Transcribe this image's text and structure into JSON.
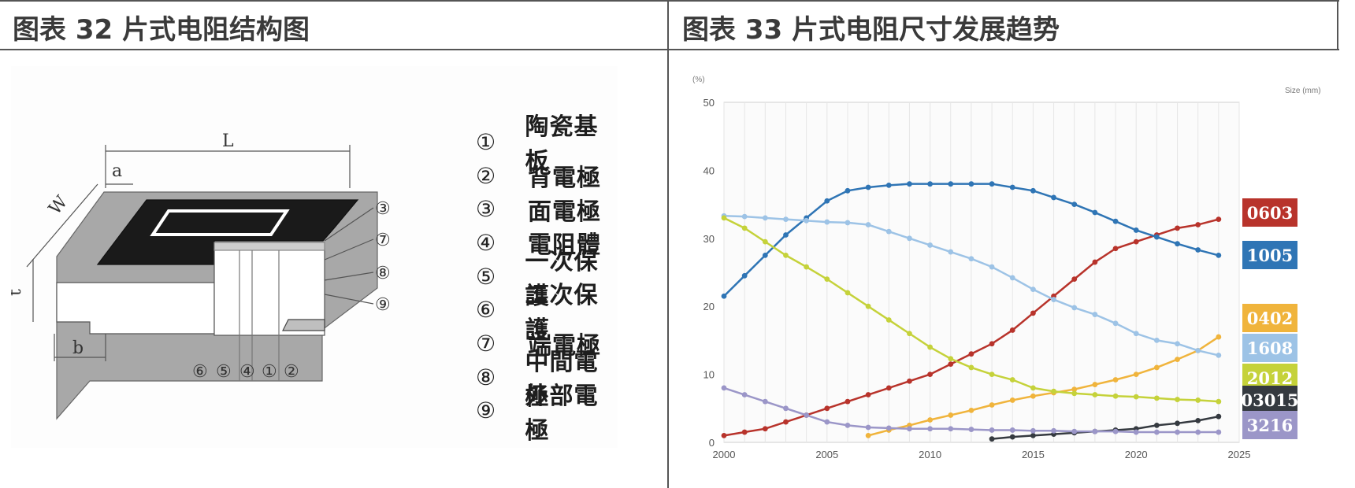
{
  "panels": {
    "left_title": "图表 32 片式电阻结构图",
    "right_title": "图表 33 片式电阻尺寸发展趋势"
  },
  "diagram": {
    "dims": [
      "L",
      "a",
      "W",
      "t",
      "b"
    ],
    "callouts": [
      "③",
      "⑦",
      "⑧",
      "⑨"
    ],
    "bottom_markers": [
      "⑥",
      "⑤",
      "④",
      "①",
      "②"
    ],
    "colors": {
      "electrode": "#1a1a1a",
      "terminal": "#a8a8a8",
      "body": "#ffffff"
    },
    "legend": [
      {
        "num": "①",
        "name": "陶瓷基板"
      },
      {
        "num": "②",
        "name": "背電極"
      },
      {
        "num": "③",
        "name": "面電極"
      },
      {
        "num": "④",
        "name": "電阻體"
      },
      {
        "num": "⑤",
        "name": "一次保護"
      },
      {
        "num": "⑥",
        "name": "二次保護"
      },
      {
        "num": "⑦",
        "name": "端電極"
      },
      {
        "num": "⑧",
        "name": "中間電極"
      },
      {
        "num": "⑨",
        "name": "外部電極"
      }
    ]
  },
  "chart_data": {
    "type": "line",
    "title": "",
    "xlabel": "",
    "ylabel": "(%)",
    "legend_title": "Size (mm)",
    "xlim": [
      2000,
      2025
    ],
    "ylim": [
      0,
      50
    ],
    "xticks": [
      2000,
      2005,
      2010,
      2015,
      2020,
      2025
    ],
    "yticks": [
      0,
      10,
      20,
      30,
      40,
      50
    ],
    "grid": true,
    "legend_position": "right",
    "series": [
      {
        "name": "0603",
        "color": "#b8332b",
        "x": [
          2000,
          2001,
          2002,
          2003,
          2004,
          2005,
          2006,
          2007,
          2008,
          2009,
          2010,
          2011,
          2012,
          2013,
          2014,
          2015,
          2016,
          2017,
          2018,
          2019,
          2020,
          2021,
          2022,
          2023,
          2024
        ],
        "y": [
          1,
          1.5,
          2,
          3,
          4,
          5,
          6,
          7,
          8,
          9,
          10,
          11.5,
          13,
          14.5,
          16.5,
          19,
          21.5,
          24,
          26.5,
          28.5,
          29.5,
          30.5,
          31.5,
          32,
          32.8
        ]
      },
      {
        "name": "1005",
        "color": "#2f75b5",
        "x": [
          2000,
          2001,
          2002,
          2003,
          2004,
          2005,
          2006,
          2007,
          2008,
          2009,
          2010,
          2011,
          2012,
          2013,
          2014,
          2015,
          2016,
          2017,
          2018,
          2019,
          2020,
          2021,
          2022,
          2023,
          2024
        ],
        "y": [
          21.5,
          24.5,
          27.5,
          30.5,
          33,
          35.5,
          37,
          37.5,
          37.8,
          38,
          38,
          38,
          38,
          38,
          37.5,
          37,
          36,
          35,
          33.8,
          32.5,
          31.2,
          30.2,
          29.2,
          28.3,
          27.5
        ]
      },
      {
        "name": "0402",
        "color": "#f0b43c",
        "x": [
          2007,
          2008,
          2009,
          2010,
          2011,
          2012,
          2013,
          2014,
          2015,
          2016,
          2017,
          2018,
          2019,
          2020,
          2021,
          2022,
          2023,
          2024
        ],
        "y": [
          1,
          1.8,
          2.5,
          3.3,
          4,
          4.7,
          5.5,
          6.2,
          6.8,
          7.3,
          7.8,
          8.5,
          9.2,
          10,
          11,
          12.2,
          13.5,
          15.5
        ]
      },
      {
        "name": "1608",
        "color": "#9dc3e6",
        "x": [
          2000,
          2001,
          2002,
          2003,
          2004,
          2005,
          2006,
          2007,
          2008,
          2009,
          2010,
          2011,
          2012,
          2013,
          2014,
          2015,
          2016,
          2017,
          2018,
          2019,
          2020,
          2021,
          2022,
          2023,
          2024
        ],
        "y": [
          33.3,
          33.2,
          33,
          32.8,
          32.6,
          32.4,
          32.3,
          32,
          31,
          30,
          29,
          28,
          27,
          25.8,
          24.2,
          22.5,
          21,
          19.8,
          18.8,
          17.5,
          16,
          15,
          14.5,
          13.5,
          12.8
        ]
      },
      {
        "name": "2012",
        "color": "#c5d23a",
        "x": [
          2000,
          2001,
          2002,
          2003,
          2004,
          2005,
          2006,
          2007,
          2008,
          2009,
          2010,
          2011,
          2012,
          2013,
          2014,
          2015,
          2016,
          2017,
          2018,
          2019,
          2020,
          2021,
          2022,
          2023,
          2024
        ],
        "y": [
          33,
          31.5,
          29.5,
          27.5,
          25.8,
          24,
          22,
          20,
          18,
          16,
          14,
          12.3,
          11,
          10,
          9.2,
          8,
          7.5,
          7.2,
          7,
          6.8,
          6.7,
          6.5,
          6.3,
          6.2,
          6
        ]
      },
      {
        "name": "03015",
        "color": "#353a40",
        "x": [
          2013,
          2014,
          2015,
          2016,
          2017,
          2018,
          2019,
          2020,
          2021,
          2022,
          2023,
          2024
        ],
        "y": [
          0.5,
          0.8,
          1,
          1.2,
          1.4,
          1.6,
          1.8,
          2,
          2.5,
          2.8,
          3.2,
          3.8
        ]
      },
      {
        "name": "3216",
        "color": "#9b96c8",
        "x": [
          2000,
          2001,
          2002,
          2003,
          2004,
          2005,
          2006,
          2007,
          2008,
          2009,
          2010,
          2011,
          2012,
          2013,
          2014,
          2015,
          2016,
          2017,
          2018,
          2019,
          2020,
          2021,
          2022,
          2023,
          2024
        ],
        "y": [
          8,
          7,
          6,
          5,
          4,
          3,
          2.5,
          2.2,
          2.1,
          2,
          2,
          2,
          1.9,
          1.8,
          1.8,
          1.7,
          1.7,
          1.6,
          1.6,
          1.6,
          1.5,
          1.5,
          1.5,
          1.5,
          1.5
        ]
      }
    ],
    "badges": [
      {
        "name": "0603",
        "color": "#b8332b"
      },
      {
        "name": "1005",
        "color": "#2f75b5"
      },
      {
        "name": "0402",
        "color": "#f0b43c"
      },
      {
        "name": "1608",
        "color": "#9dc3e6"
      },
      {
        "name": "2012",
        "color": "#c5d23a"
      },
      {
        "name": "03015",
        "color": "#353a40"
      },
      {
        "name": "3216",
        "color": "#9b96c8"
      }
    ]
  }
}
